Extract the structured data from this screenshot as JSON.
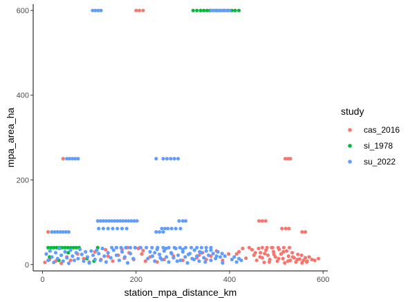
{
  "chart_data": {
    "type": "scatter",
    "xlabel": "station_mpa_distance_km",
    "ylabel": "mpa_area_ha",
    "xlim": [
      -20,
      610
    ],
    "ylim": [
      -15,
      615
    ],
    "x_ticks": [
      0,
      200,
      400,
      600
    ],
    "y_ticks": [
      0,
      200,
      400,
      600
    ],
    "x_tick_labels": [
      "0",
      "200",
      "400",
      "600"
    ],
    "y_tick_labels": [
      "0",
      "200",
      "400",
      "600"
    ],
    "grid": false,
    "legend": {
      "title": "study",
      "position": "right"
    },
    "series": [
      {
        "name": "cas_2016",
        "color": "#F8766D",
        "points": [
          [
            200,
            600
          ],
          [
            207,
            600
          ],
          [
            215,
            600
          ],
          [
            44,
            250
          ],
          [
            519,
            250
          ],
          [
            525,
            250
          ],
          [
            530,
            250
          ],
          [
            12,
            77
          ],
          [
            463,
            103
          ],
          [
            470,
            103
          ],
          [
            477,
            103
          ],
          [
            512,
            85
          ],
          [
            520,
            85
          ],
          [
            527,
            85
          ],
          [
            555,
            77
          ],
          [
            562,
            77
          ],
          [
            5,
            5
          ],
          [
            15,
            12
          ],
          [
            28,
            8
          ],
          [
            40,
            3
          ],
          [
            52,
            18
          ],
          [
            60,
            10
          ],
          [
            75,
            25
          ],
          [
            88,
            14
          ],
          [
            100,
            6
          ],
          [
            112,
            30
          ],
          [
            125,
            12
          ],
          [
            140,
            20
          ],
          [
            150,
            8
          ],
          [
            162,
            22
          ],
          [
            175,
            15
          ],
          [
            185,
            28
          ],
          [
            195,
            12
          ],
          [
            205,
            38
          ],
          [
            212,
            25
          ],
          [
            220,
            8
          ],
          [
            230,
            18
          ],
          [
            245,
            6
          ],
          [
            260,
            12
          ],
          [
            280,
            20
          ],
          [
            300,
            10
          ],
          [
            118,
            40
          ],
          [
            135,
            35
          ],
          [
            158,
            40
          ],
          [
            170,
            36
          ],
          [
            182,
            40
          ],
          [
            198,
            40
          ],
          [
            208,
            40
          ],
          [
            215,
            33
          ],
          [
            330,
            16
          ],
          [
            335,
            22
          ],
          [
            342,
            28
          ],
          [
            350,
            12
          ],
          [
            360,
            20
          ],
          [
            372,
            32
          ],
          [
            385,
            10
          ],
          [
            398,
            25
          ],
          [
            415,
            25
          ],
          [
            420,
            30
          ],
          [
            428,
            38
          ],
          [
            435,
            15
          ],
          [
            442,
            40
          ],
          [
            448,
            35
          ],
          [
            452,
            22
          ],
          [
            458,
            10
          ],
          [
            462,
            38
          ],
          [
            466,
            28
          ],
          [
            470,
            16
          ],
          [
            474,
            5
          ],
          [
            478,
            34
          ],
          [
            482,
            22
          ],
          [
            486,
            12
          ],
          [
            490,
            40
          ],
          [
            494,
            30
          ],
          [
            498,
            18
          ],
          [
            502,
            8
          ],
          [
            506,
            36
          ],
          [
            510,
            25
          ],
          [
            514,
            14
          ],
          [
            518,
            4
          ],
          [
            522,
            32
          ],
          [
            526,
            20
          ],
          [
            530,
            10
          ],
          [
            534,
            28
          ],
          [
            538,
            16
          ],
          [
            542,
            6
          ],
          [
            546,
            24
          ],
          [
            550,
            13
          ],
          [
            554,
            22
          ],
          [
            558,
            10
          ],
          [
            562,
            16
          ],
          [
            566,
            8
          ],
          [
            570,
            18
          ],
          [
            576,
            12
          ],
          [
            582,
            10
          ],
          [
            590,
            14
          ],
          [
            455,
            28
          ],
          [
            465,
            18
          ],
          [
            475,
            26
          ],
          [
            485,
            6
          ],
          [
            495,
            24
          ],
          [
            505,
            14
          ],
          [
            515,
            30
          ],
          [
            525,
            8
          ],
          [
            535,
            18
          ],
          [
            545,
            12
          ],
          [
            555,
            4
          ],
          [
            565,
            6
          ],
          [
            470,
            40
          ],
          [
            480,
            40
          ],
          [
            492,
            40
          ],
          [
            504,
            40
          ],
          [
            516,
            40
          ],
          [
            528,
            40
          ]
        ]
      },
      {
        "name": "si_1978",
        "color": "#00BA38",
        "points": [
          [
            322,
            600
          ],
          [
            330,
            600
          ],
          [
            338,
            600
          ],
          [
            345,
            600
          ],
          [
            352,
            600
          ],
          [
            358,
            600
          ],
          [
            365,
            600
          ],
          [
            372,
            600
          ],
          [
            380,
            600
          ],
          [
            388,
            600
          ],
          [
            396,
            600
          ],
          [
            405,
            600
          ],
          [
            412,
            600
          ],
          [
            420,
            600
          ],
          [
            12,
            40
          ],
          [
            18,
            40
          ],
          [
            24,
            40
          ],
          [
            30,
            40
          ],
          [
            36,
            40
          ],
          [
            42,
            40
          ],
          [
            48,
            40
          ],
          [
            54,
            40
          ],
          [
            60,
            40
          ],
          [
            66,
            40
          ],
          [
            72,
            40
          ],
          [
            78,
            40
          ],
          [
            118,
            40
          ],
          [
            15,
            18
          ],
          [
            35,
            10
          ],
          [
            55,
            28
          ],
          [
            95,
            14
          ],
          [
            110,
            8
          ]
        ]
      },
      {
        "name": "su_2022",
        "color": "#619CFF",
        "points": [
          [
            107,
            600
          ],
          [
            113,
            600
          ],
          [
            119,
            600
          ],
          [
            125,
            600
          ],
          [
            360,
            600
          ],
          [
            365,
            600
          ],
          [
            370,
            600
          ],
          [
            375,
            600
          ],
          [
            380,
            600
          ],
          [
            385,
            600
          ],
          [
            390,
            600
          ],
          [
            395,
            600
          ],
          [
            400,
            600
          ],
          [
            52,
            250
          ],
          [
            58,
            250
          ],
          [
            64,
            250
          ],
          [
            70,
            250
          ],
          [
            76,
            250
          ],
          [
            243,
            250
          ],
          [
            258,
            250
          ],
          [
            266,
            250
          ],
          [
            274,
            250
          ],
          [
            282,
            250
          ],
          [
            290,
            250
          ],
          [
            20,
            77
          ],
          [
            26,
            77
          ],
          [
            32,
            77
          ],
          [
            38,
            77
          ],
          [
            44,
            77
          ],
          [
            50,
            77
          ],
          [
            56,
            77
          ],
          [
            118,
            103
          ],
          [
            124,
            103
          ],
          [
            130,
            103
          ],
          [
            136,
            103
          ],
          [
            142,
            103
          ],
          [
            148,
            103
          ],
          [
            154,
            103
          ],
          [
            160,
            103
          ],
          [
            166,
            103
          ],
          [
            172,
            103
          ],
          [
            178,
            103
          ],
          [
            184,
            103
          ],
          [
            190,
            103
          ],
          [
            196,
            103
          ],
          [
            202,
            103
          ],
          [
            120,
            85
          ],
          [
            130,
            85
          ],
          [
            140,
            85
          ],
          [
            150,
            85
          ],
          [
            160,
            85
          ],
          [
            170,
            85
          ],
          [
            180,
            85
          ],
          [
            255,
            85
          ],
          [
            262,
            85
          ],
          [
            268,
            85
          ],
          [
            276,
            85
          ],
          [
            285,
            85
          ],
          [
            295,
            85
          ],
          [
            292,
            103
          ],
          [
            300,
            103
          ],
          [
            306,
            103
          ],
          [
            243,
            77
          ],
          [
            250,
            77
          ],
          [
            258,
            77
          ],
          [
            8,
            25
          ],
          [
            12,
            10
          ],
          [
            16,
            32
          ],
          [
            20,
            18
          ],
          [
            24,
            5
          ],
          [
            28,
            28
          ],
          [
            32,
            14
          ],
          [
            36,
            38
          ],
          [
            40,
            22
          ],
          [
            44,
            8
          ],
          [
            48,
            30
          ],
          [
            52,
            16
          ],
          [
            56,
            3
          ],
          [
            60,
            34
          ],
          [
            64,
            20
          ],
          [
            68,
            10
          ],
          [
            72,
            28
          ],
          [
            76,
            14
          ],
          [
            80,
            36
          ],
          [
            84,
            24
          ],
          [
            88,
            8
          ],
          [
            92,
            30
          ],
          [
            96,
            18
          ],
          [
            100,
            4
          ],
          [
            104,
            32
          ],
          [
            108,
            22
          ],
          [
            112,
            12
          ],
          [
            116,
            34
          ],
          [
            120,
            26
          ],
          [
            124,
            10
          ],
          [
            128,
            38
          ],
          [
            132,
            20
          ],
          [
            136,
            6
          ],
          [
            140,
            28
          ],
          [
            146,
            16
          ],
          [
            152,
            34
          ],
          [
            158,
            22
          ],
          [
            164,
            10
          ],
          [
            170,
            30
          ],
          [
            176,
            18
          ],
          [
            182,
            4
          ],
          [
            188,
            26
          ],
          [
            194,
            14
          ],
          [
            148,
            40
          ],
          [
            158,
            40
          ],
          [
            168,
            40
          ],
          [
            178,
            40
          ],
          [
            188,
            40
          ],
          [
            198,
            40
          ],
          [
            210,
            40
          ],
          [
            222,
            40
          ],
          [
            234,
            40
          ],
          [
            246,
            40
          ],
          [
            258,
            40
          ],
          [
            270,
            40
          ],
          [
            282,
            40
          ],
          [
            294,
            40
          ],
          [
            306,
            40
          ],
          [
            318,
            40
          ],
          [
            330,
            40
          ],
          [
            340,
            40
          ],
          [
            350,
            40
          ],
          [
            360,
            40
          ],
          [
            225,
            14
          ],
          [
            230,
            30
          ],
          [
            235,
            20
          ],
          [
            240,
            8
          ],
          [
            245,
            36
          ],
          [
            250,
            24
          ],
          [
            255,
            12
          ],
          [
            260,
            32
          ],
          [
            265,
            18
          ],
          [
            270,
            6
          ],
          [
            275,
            28
          ],
          [
            280,
            16
          ],
          [
            285,
            38
          ],
          [
            290,
            22
          ],
          [
            295,
            10
          ],
          [
            300,
            30
          ],
          [
            305,
            18
          ],
          [
            310,
            4
          ],
          [
            315,
            26
          ],
          [
            320,
            14
          ],
          [
            325,
            34
          ],
          [
            330,
            20
          ],
          [
            335,
            8
          ],
          [
            340,
            28
          ],
          [
            345,
            16
          ],
          [
            350,
            32
          ],
          [
            355,
            22
          ],
          [
            360,
            10
          ],
          [
            365,
            26
          ],
          [
            370,
            14
          ],
          [
            375,
            30
          ],
          [
            380,
            18
          ],
          [
            385,
            4
          ],
          [
            390,
            20
          ],
          [
            240,
            28
          ],
          [
            252,
            16
          ],
          [
            264,
            38
          ],
          [
            276,
            26
          ],
          [
            288,
            8
          ],
          [
            300,
            36
          ],
          [
            312,
            24
          ],
          [
            324,
            12
          ],
          [
            336,
            30
          ],
          [
            348,
            6
          ],
          [
            360,
            34
          ],
          [
            372,
            20
          ],
          [
            384,
            26
          ],
          [
            405,
            12
          ],
          [
            410,
            18
          ],
          [
            415,
            6
          ],
          [
            420,
            14
          ],
          [
            425,
            10
          ]
        ]
      }
    ]
  }
}
